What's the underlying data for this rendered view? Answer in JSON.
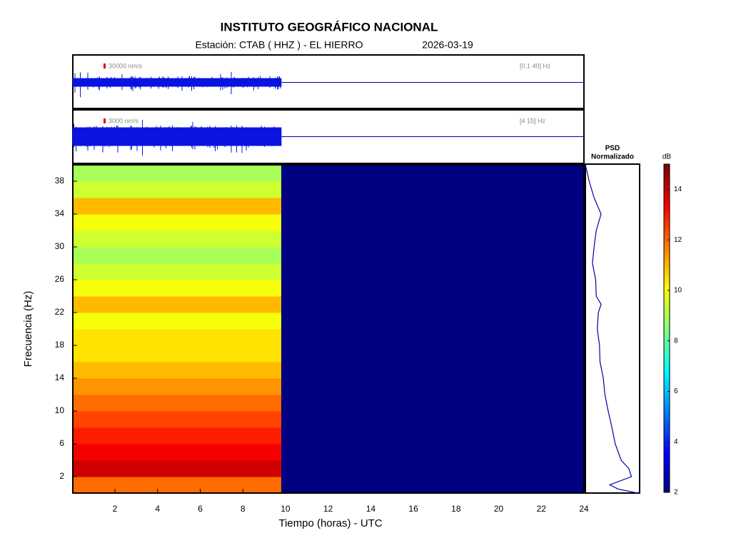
{
  "header": {
    "title": "INSTITUTO GEOGRÁFICO NACIONAL",
    "station": "Estación:  CTAB ( HHZ ) - EL HIERRO",
    "date": "2026-03-19"
  },
  "chart_data": [
    {
      "type": "waveform",
      "scale_label": "30000 nm/s",
      "band_label": "[0.1 40] Hz",
      "x": [
        0,
        9.8
      ],
      "xlim": [
        0,
        24
      ]
    },
    {
      "type": "waveform",
      "scale_label": "3000 nm/s",
      "band_label": "[4 15] Hz",
      "x": [
        0,
        9.8
      ],
      "xlim": [
        0,
        24
      ]
    },
    {
      "type": "heatmap",
      "xlabel": "Tiempo (horas) - UTC",
      "ylabel": "Frecuencia  (Hz)",
      "x_edges": [
        0,
        9.8,
        24
      ],
      "y_edges": [
        0,
        2,
        4,
        6,
        8,
        10,
        12,
        14,
        16,
        18,
        20,
        22,
        24,
        26,
        28,
        30,
        32,
        34,
        36,
        38,
        40
      ],
      "z": [
        [
          12,
          2
        ],
        [
          14,
          2
        ],
        [
          13.5,
          2
        ],
        [
          13,
          2
        ],
        [
          12.5,
          2
        ],
        [
          12,
          2
        ],
        [
          11.5,
          2
        ],
        [
          11,
          2
        ],
        [
          10.5,
          2
        ],
        [
          10.5,
          2
        ],
        [
          10,
          2
        ],
        [
          11,
          2
        ],
        [
          10,
          2
        ],
        [
          9.5,
          2
        ],
        [
          9,
          2
        ],
        [
          9.5,
          2
        ],
        [
          10,
          2
        ],
        [
          11,
          2
        ],
        [
          9.5,
          2
        ],
        [
          9,
          2
        ]
      ],
      "xlim": [
        0,
        24
      ],
      "ylim": [
        0,
        40
      ],
      "xticks": [
        2,
        4,
        6,
        8,
        10,
        12,
        14,
        16,
        18,
        20,
        22,
        24
      ],
      "yticks": [
        2,
        6,
        10,
        14,
        18,
        22,
        26,
        30,
        34,
        38
      ],
      "clim": [
        2,
        15
      ],
      "cticks": [
        2,
        4,
        6,
        8,
        10,
        12,
        14
      ],
      "clabel": "dB"
    },
    {
      "type": "psd",
      "title": "PSD",
      "subtitle": "Normalizado",
      "color": "#0000aa",
      "y": [
        0,
        0.5,
        1,
        2,
        3,
        4,
        6,
        8,
        10,
        12,
        14,
        16,
        18,
        20,
        22,
        23,
        24,
        26,
        28,
        30,
        32,
        34,
        36,
        38,
        40
      ],
      "values": [
        0.96,
        0.6,
        0.45,
        0.85,
        0.8,
        0.66,
        0.55,
        0.49,
        0.42,
        0.36,
        0.33,
        0.27,
        0.26,
        0.22,
        0.24,
        0.29,
        0.2,
        0.19,
        0.13,
        0.16,
        0.2,
        0.29,
        0.16,
        0.07,
        0
      ],
      "xlim": [
        0,
        1
      ],
      "ylim": [
        0,
        40
      ]
    }
  ]
}
